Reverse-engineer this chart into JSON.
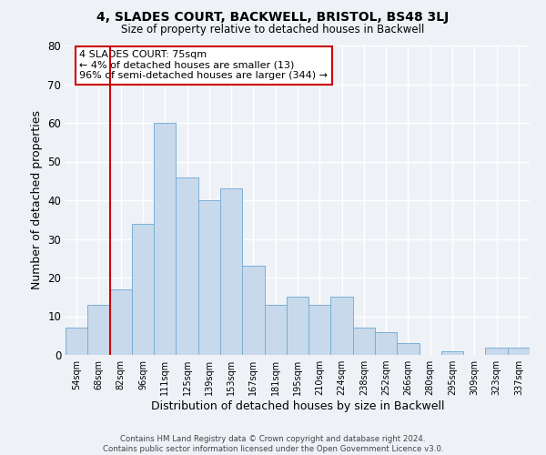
{
  "title": "4, SLADES COURT, BACKWELL, BRISTOL, BS48 3LJ",
  "subtitle": "Size of property relative to detached houses in Backwell",
  "xlabel": "Distribution of detached houses by size in Backwell",
  "ylabel": "Number of detached properties",
  "bar_color": "#c8d9ec",
  "bar_edge_color": "#7aafd4",
  "background_color": "#eef2f7",
  "grid_color": "#ffffff",
  "categories": [
    "54sqm",
    "68sqm",
    "82sqm",
    "96sqm",
    "111sqm",
    "125sqm",
    "139sqm",
    "153sqm",
    "167sqm",
    "181sqm",
    "195sqm",
    "210sqm",
    "224sqm",
    "238sqm",
    "252sqm",
    "266sqm",
    "280sqm",
    "295sqm",
    "309sqm",
    "323sqm",
    "337sqm"
  ],
  "values": [
    7,
    13,
    17,
    34,
    60,
    46,
    40,
    43,
    23,
    13,
    15,
    13,
    15,
    7,
    6,
    3,
    0,
    1,
    0,
    2,
    2
  ],
  "ylim": [
    0,
    80
  ],
  "yticks": [
    0,
    10,
    20,
    30,
    40,
    50,
    60,
    70,
    80
  ],
  "vline_color": "#cc0000",
  "annotation_title": "4 SLADES COURT: 75sqm",
  "annotation_line1": "← 4% of detached houses are smaller (13)",
  "annotation_line2": "96% of semi-detached houses are larger (344) →",
  "annotation_box_color": "#ffffff",
  "annotation_border_color": "#cc0000",
  "footer1": "Contains HM Land Registry data © Crown copyright and database right 2024.",
  "footer2": "Contains public sector information licensed under the Open Government Licence v3.0."
}
